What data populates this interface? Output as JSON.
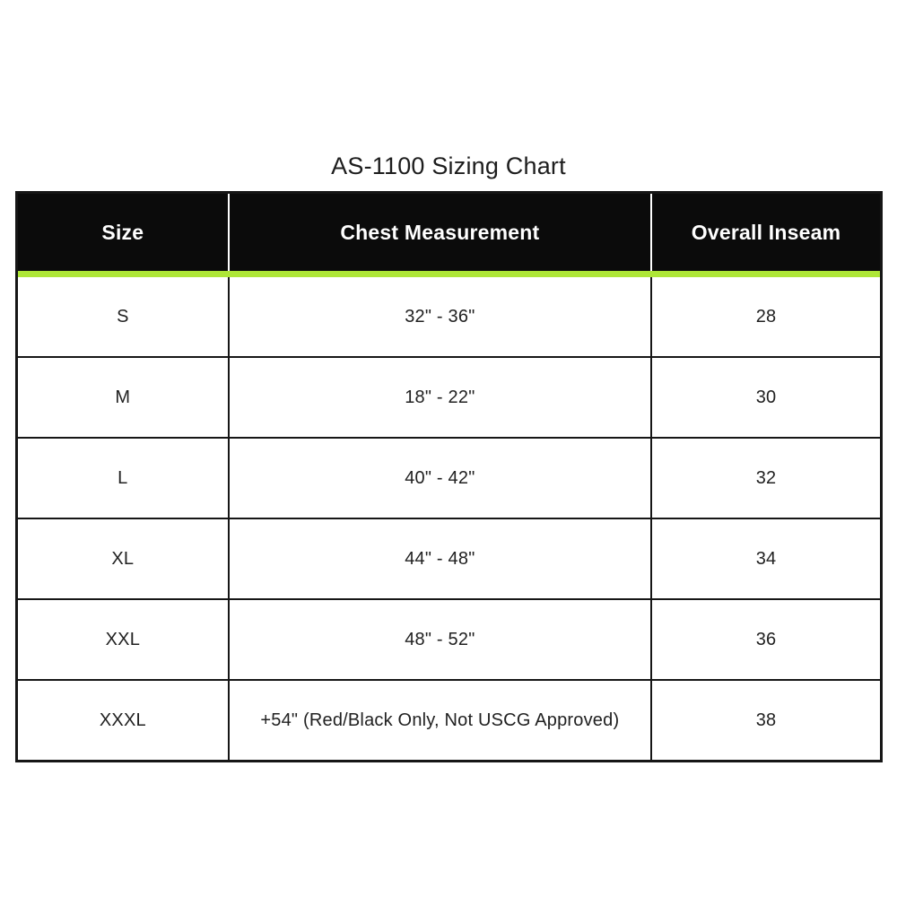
{
  "title": "AS-1100 Sizing Chart",
  "colors": {
    "header_bg": "#0b0b0b",
    "header_text": "#ffffff",
    "accent_green": "#aee637",
    "border": "#161616",
    "body_text": "#212121",
    "page_bg": "#ffffff"
  },
  "table": {
    "columns": [
      "Size",
      "Chest Measurement",
      "Overall Inseam"
    ],
    "rows": [
      [
        "S",
        "32\" - 36\"",
        "28"
      ],
      [
        "M",
        "18\" - 22\"",
        "30"
      ],
      [
        "L",
        "40\" - 42\"",
        "32"
      ],
      [
        "XL",
        "44\" - 48\"",
        "34"
      ],
      [
        "XXL",
        "48\" - 52\"",
        "36"
      ],
      [
        "XXXL",
        "+54\" (Red/Black Only, Not USCG Approved)",
        "38"
      ]
    ]
  },
  "chart_data": {
    "type": "table",
    "title": "AS-1100 Sizing Chart",
    "columns": [
      "Size",
      "Chest Measurement",
      "Overall Inseam"
    ],
    "rows": [
      {
        "size": "S",
        "chest_measurement": "32\" - 36\"",
        "overall_inseam": 28
      },
      {
        "size": "M",
        "chest_measurement": "18\" - 22\"",
        "overall_inseam": 30
      },
      {
        "size": "L",
        "chest_measurement": "40\" - 42\"",
        "overall_inseam": 32
      },
      {
        "size": "XL",
        "chest_measurement": "44\" - 48\"",
        "overall_inseam": 34
      },
      {
        "size": "XXL",
        "chest_measurement": "48\" - 52\"",
        "overall_inseam": 36
      },
      {
        "size": "XXXL",
        "chest_measurement": "+54\" (Red/Black Only, Not USCG Approved)",
        "overall_inseam": 38
      }
    ],
    "layout_hints": {
      "header_style": "black background, white bold text",
      "accent_divider": "lime green bar under header",
      "grid": true
    }
  }
}
